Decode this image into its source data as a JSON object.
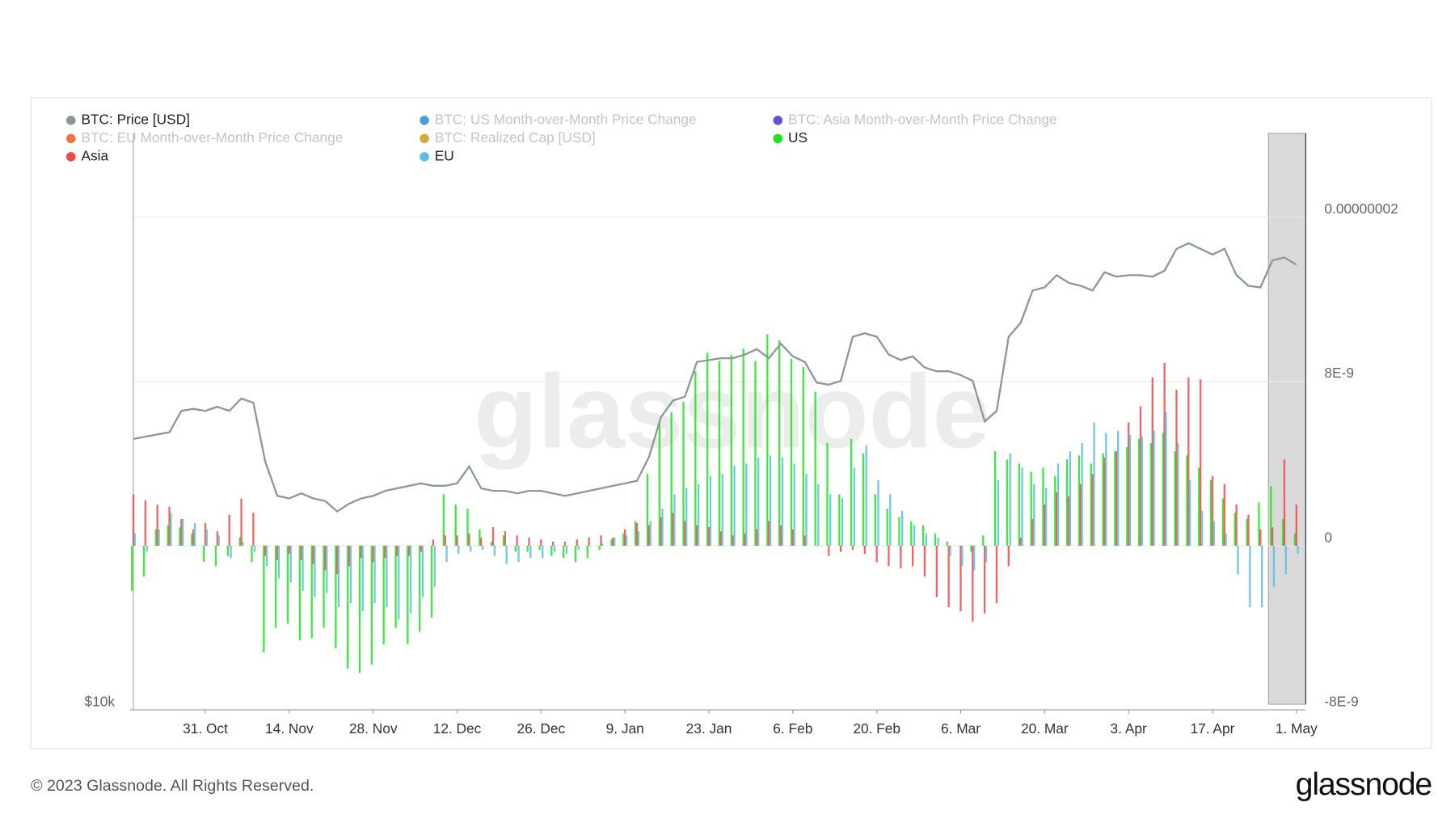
{
  "chart_data": {
    "type": "bar-line",
    "watermark": "glassnode",
    "footer": "© 2023 Glassnode. All Rights Reserved.",
    "logo": "glassnode",
    "categories": [
      null,
      null,
      null,
      null,
      null,
      null,
      "31. Oct",
      null,
      null,
      null,
      null,
      null,
      null,
      "14. Nov",
      null,
      null,
      null,
      null,
      null,
      null,
      "28. Nov",
      null,
      null,
      null,
      null,
      null,
      null,
      "12. Dec",
      null,
      null,
      null,
      null,
      null,
      null,
      "26. Dec",
      null,
      null,
      null,
      null,
      null,
      null,
      "9. Jan",
      null,
      null,
      null,
      null,
      null,
      null,
      "23. Jan",
      null,
      null,
      null,
      null,
      null,
      null,
      "6. Feb",
      null,
      null,
      null,
      null,
      null,
      null,
      "20. Feb",
      null,
      null,
      null,
      null,
      null,
      null,
      "6. Mar",
      null,
      null,
      null,
      null,
      null,
      null,
      "20. Mar",
      null,
      null,
      null,
      null,
      null,
      null,
      "3. Apr",
      null,
      null,
      null,
      null,
      null,
      null,
      "17. Apr",
      null,
      null,
      null,
      null,
      null,
      null,
      "1. May"
    ],
    "ylim": [
      10000,
      39000
    ],
    "log_scale": true,
    "yticks": [
      {
        "value": 10000,
        "label": "$10k"
      }
    ],
    "y2lim": [
      -8e-09,
      2e-08
    ],
    "y2ticks": [
      {
        "value": -8e-09,
        "label": "-8E-9"
      },
      0,
      {
        "value": 8e-09,
        "label": "8E-9"
      },
      {
        "value": 1.6e-08,
        "label": "0.00000002"
      }
    ],
    "grid": true,
    "series": [
      {
        "name": "BTC: Price [USD]",
        "color": "#8c969b",
        "visible": true,
        "axis": "y",
        "kind": "line",
        "values": [
          19000,
          19100,
          19200,
          19300,
          20300,
          20400,
          20300,
          20500,
          20300,
          20900,
          20700,
          18000,
          16600,
          16500,
          16700,
          16500,
          16400,
          16000,
          16300,
          16500,
          16600,
          16800,
          16900,
          17000,
          17100,
          17000,
          17000,
          17100,
          17800,
          16900,
          16800,
          16800,
          16700,
          16800,
          16800,
          16700,
          16600,
          16700,
          16800,
          16900,
          17000,
          17100,
          17200,
          18200,
          20000,
          20800,
          21000,
          22800,
          22900,
          23000,
          23000,
          23200,
          23500,
          23000,
          23800,
          23100,
          22800,
          21700,
          21600,
          21800,
          24200,
          24400,
          24200,
          23200,
          22900,
          23100,
          22500,
          22300,
          22300,
          22100,
          21800,
          19800,
          20300,
          24200,
          25000,
          27000,
          27200,
          28000,
          27500,
          27300,
          27000,
          28200,
          27900,
          28000,
          28000,
          27900,
          28300,
          29800,
          30200,
          29800,
          29400,
          29800,
          28000,
          27300,
          27200,
          29000,
          29200,
          28700
        ]
      },
      {
        "name": "BTC: US Month-over-Month Price Change",
        "color": "#3b8fd9",
        "visible": false
      },
      {
        "name": "BTC: Asia Month-over-Month Price Change",
        "color": "#4a3fcf",
        "visible": false
      },
      {
        "name": "BTC: EU Month-over-Month Price Change",
        "color": "#f26522",
        "visible": false
      },
      {
        "name": "BTC: Realized Cap [USD]",
        "color": "#c9a227",
        "visible": false
      },
      {
        "name": "US",
        "color": "#19e619",
        "visible": true,
        "axis": "y2",
        "kind": "bar",
        "values": [
          -2.2e-09,
          -1.5e-09,
          8e-10,
          1e-09,
          9e-10,
          6e-10,
          -8e-10,
          -1e-09,
          -5e-10,
          4e-10,
          -8e-10,
          -5.2e-09,
          -4e-09,
          -3.8e-09,
          -4.6e-09,
          -4.5e-09,
          -4e-09,
          -5e-09,
          -6e-09,
          -6.2e-09,
          -5.8e-09,
          -4.8e-09,
          -4e-09,
          -4.8e-09,
          -4.2e-09,
          -3.5e-09,
          2.5e-09,
          2e-09,
          1.8e-09,
          8e-10,
          2e-10,
          5e-10,
          -3e-10,
          -3e-10,
          -2e-10,
          -5e-10,
          -6e-10,
          -8e-10,
          -6e-10,
          -2e-10,
          3e-10,
          6e-10,
          1.2e-09,
          3.5e-09,
          6e-09,
          6.5e-09,
          7e-09,
          8.5e-09,
          9.4e-09,
          9e-09,
          9.3e-09,
          9.6e-09,
          9e-09,
          1.03e-08,
          1e-08,
          9.1e-09,
          8.7e-09,
          7.5e-09,
          5e-09,
          2.5e-09,
          5.2e-09,
          4.5e-09,
          2.5e-09,
          1.8e-09,
          1.4e-09,
          1.2e-09,
          1e-09,
          6e-10,
          2e-10,
          0,
          -3e-10,
          5e-10,
          4.6e-09,
          4.2e-09,
          4e-09,
          3.6e-09,
          3.8e-09,
          3.4e-09,
          4.2e-09,
          4.4e-09,
          4e-09,
          4.5e-09,
          4.6e-09,
          4.8e-09,
          5.2e-09,
          5e-09,
          5.5e-09,
          4.6e-09,
          4.4e-09,
          3.8e-09,
          3.2e-09,
          2.3e-09,
          1.6e-09,
          1.3e-09,
          2.1e-09,
          2.9e-09,
          1.3e-09,
          6e-10
        ]
      },
      {
        "name": "Asia",
        "color": "#f04848",
        "visible": true,
        "axis": "y2",
        "kind": "bar",
        "values": [
          2.5e-09,
          2.2e-09,
          2e-09,
          1.9e-09,
          1.3e-09,
          8e-10,
          1.1e-09,
          7e-10,
          1.5e-09,
          2.3e-09,
          1.6e-09,
          -5e-10,
          -7e-10,
          -4e-10,
          -7e-10,
          -9e-10,
          -1.2e-09,
          -1.4e-09,
          -1e-09,
          -6e-10,
          -8e-10,
          -6e-10,
          -5e-10,
          -5e-10,
          -3e-10,
          3e-10,
          5e-10,
          5e-10,
          6e-10,
          4e-10,
          9e-10,
          7e-10,
          5e-10,
          4e-10,
          3e-10,
          2e-10,
          2e-10,
          3e-10,
          4e-10,
          5e-10,
          4e-10,
          8e-10,
          1.1e-09,
          1e-09,
          1.4e-09,
          1.6e-09,
          1.2e-09,
          1e-09,
          9e-10,
          7e-10,
          5e-10,
          6e-10,
          8e-10,
          1.2e-09,
          1e-09,
          8e-10,
          5e-10,
          0,
          -5e-10,
          -3e-10,
          -2e-10,
          -4e-10,
          -8e-10,
          -1e-09,
          -1.1e-09,
          -1e-09,
          -1.5e-09,
          -2.5e-09,
          -3e-09,
          -3.2e-09,
          -3.7e-09,
          -3.3e-09,
          -2.8e-09,
          -1e-09,
          4e-10,
          1.3e-09,
          2e-09,
          2.6e-09,
          2.4e-09,
          3e-09,
          3.5e-09,
          4.3e-09,
          4.6e-09,
          6e-09,
          6.8e-09,
          8.2e-09,
          8.9e-09,
          7.6e-09,
          8.2e-09,
          8.1e-09,
          3.4e-09,
          3e-09,
          2e-09,
          1.5e-09,
          8e-10,
          9e-10,
          4.2e-09,
          2e-09
        ]
      },
      {
        "name": "EU",
        "color": "#5bbde0",
        "visible": true,
        "axis": "y2",
        "kind": "bar",
        "values": [
          6e-10,
          -3e-10,
          8e-10,
          1.6e-09,
          1.3e-09,
          1.1e-09,
          8e-10,
          5e-10,
          -6e-10,
          2e-10,
          -3e-10,
          -1e-09,
          -1.6e-09,
          -1.8e-09,
          -2.2e-09,
          -2.5e-09,
          -2.3e-09,
          -3e-09,
          -2.8e-09,
          -3.2e-09,
          -2.8e-09,
          -3e-09,
          -3.6e-09,
          -3.3e-09,
          -2.5e-09,
          -2e-09,
          -8e-10,
          -4e-10,
          -3e-10,
          -2e-10,
          -5e-10,
          -9e-10,
          -8e-10,
          -6e-10,
          -6e-10,
          -3e-10,
          -4e-10,
          -2e-10,
          0,
          1e-10,
          4e-10,
          5e-10,
          7e-10,
          1.2e-09,
          1.8e-09,
          2.5e-09,
          2.8e-09,
          3e-09,
          3.4e-09,
          3.5e-09,
          3.9e-09,
          4e-09,
          4.3e-09,
          4.4e-09,
          4.3e-09,
          4e-09,
          3.5e-09,
          3e-09,
          2.5e-09,
          2.3e-09,
          3.8e-09,
          4.9e-09,
          3.2e-09,
          2.5e-09,
          1.7e-09,
          1e-09,
          6e-10,
          4e-10,
          -5e-10,
          -1e-09,
          -1.2e-09,
          -8e-10,
          3.2e-09,
          4.5e-09,
          3.8e-09,
          3e-09,
          2.8e-09,
          4e-09,
          4.6e-09,
          5e-09,
          6e-09,
          5.5e-09,
          5.6e-09,
          5.4e-09,
          5.3e-09,
          5.6e-09,
          6.5e-09,
          5e-09,
          3.2e-09,
          1.7e-09,
          1.2e-09,
          6e-10,
          -1.4e-09,
          -3e-09,
          -3e-09,
          -2e-09,
          -1.4e-09,
          -4e-10
        ]
      }
    ]
  }
}
